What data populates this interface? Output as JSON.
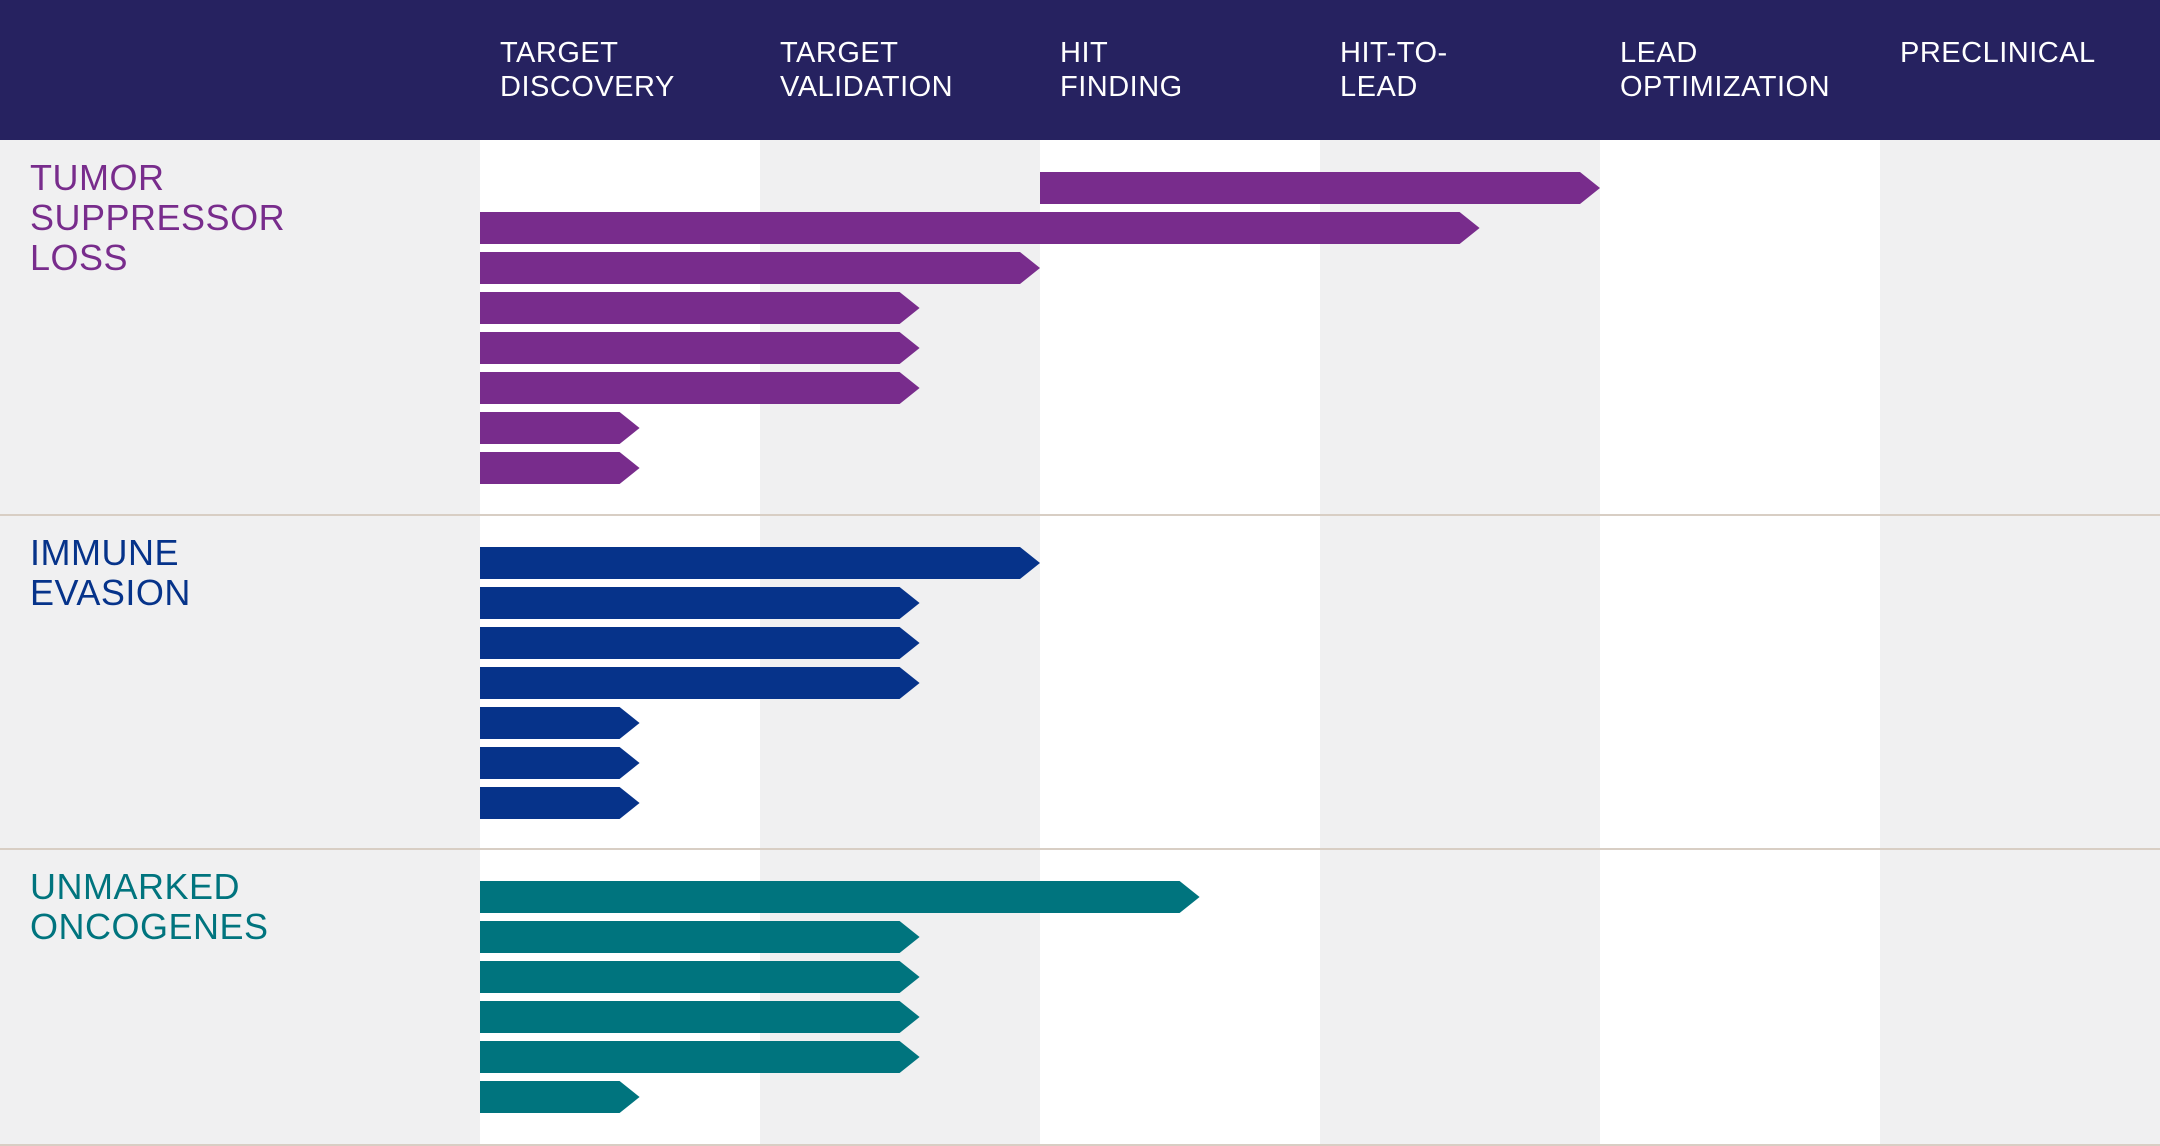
{
  "colors": {
    "header_bg": "#262260",
    "page_bg": "#f0f0f1",
    "column_alt_bg": "#ffffff",
    "divider": "#d8cec4",
    "tumor_suppressor_loss": "#782c8c",
    "immune_evasion": "#06338a",
    "unmarked_oncogenes": "#00747e"
  },
  "chart_data": {
    "type": "bar",
    "orientation": "horizontal",
    "stages": [
      [
        "TARGET",
        "DISCOVERY"
      ],
      [
        "TARGET",
        "VALIDATION"
      ],
      [
        "HIT",
        "FINDING"
      ],
      [
        "HIT-TO-",
        "LEAD"
      ],
      [
        "LEAD",
        "OPTIMIZATION"
      ],
      [
        "PRECLINICAL"
      ]
    ],
    "value_unit": "stage",
    "groups": [
      {
        "label_lines": [
          "TUMOR",
          "SUPPRESSOR",
          "LOSS"
        ],
        "color": "#782c8c",
        "bars": [
          {
            "start": 2,
            "end": 4
          },
          {
            "start": 0,
            "end": 3.57
          },
          {
            "start": 0,
            "end": 2
          },
          {
            "start": 0,
            "end": 1.57
          },
          {
            "start": 0,
            "end": 1.57
          },
          {
            "start": 0,
            "end": 1.57
          },
          {
            "start": 0,
            "end": 0.57
          },
          {
            "start": 0,
            "end": 0.57
          }
        ]
      },
      {
        "label_lines": [
          "IMMUNE",
          "EVASION"
        ],
        "color": "#06338a",
        "bars": [
          {
            "start": 0,
            "end": 2
          },
          {
            "start": 0,
            "end": 1.57
          },
          {
            "start": 0,
            "end": 1.57
          },
          {
            "start": 0,
            "end": 1.57
          },
          {
            "start": 0,
            "end": 0.57
          },
          {
            "start": 0,
            "end": 0.57
          },
          {
            "start": 0,
            "end": 0.57
          }
        ]
      },
      {
        "label_lines": [
          "UNMARKED",
          "ONCOGENES"
        ],
        "color": "#00747e",
        "bars": [
          {
            "start": 0,
            "end": 2.57
          },
          {
            "start": 0,
            "end": 1.57
          },
          {
            "start": 0,
            "end": 1.57
          },
          {
            "start": 0,
            "end": 1.57
          },
          {
            "start": 0,
            "end": 1.57
          },
          {
            "start": 0,
            "end": 0.57
          }
        ]
      }
    ]
  }
}
